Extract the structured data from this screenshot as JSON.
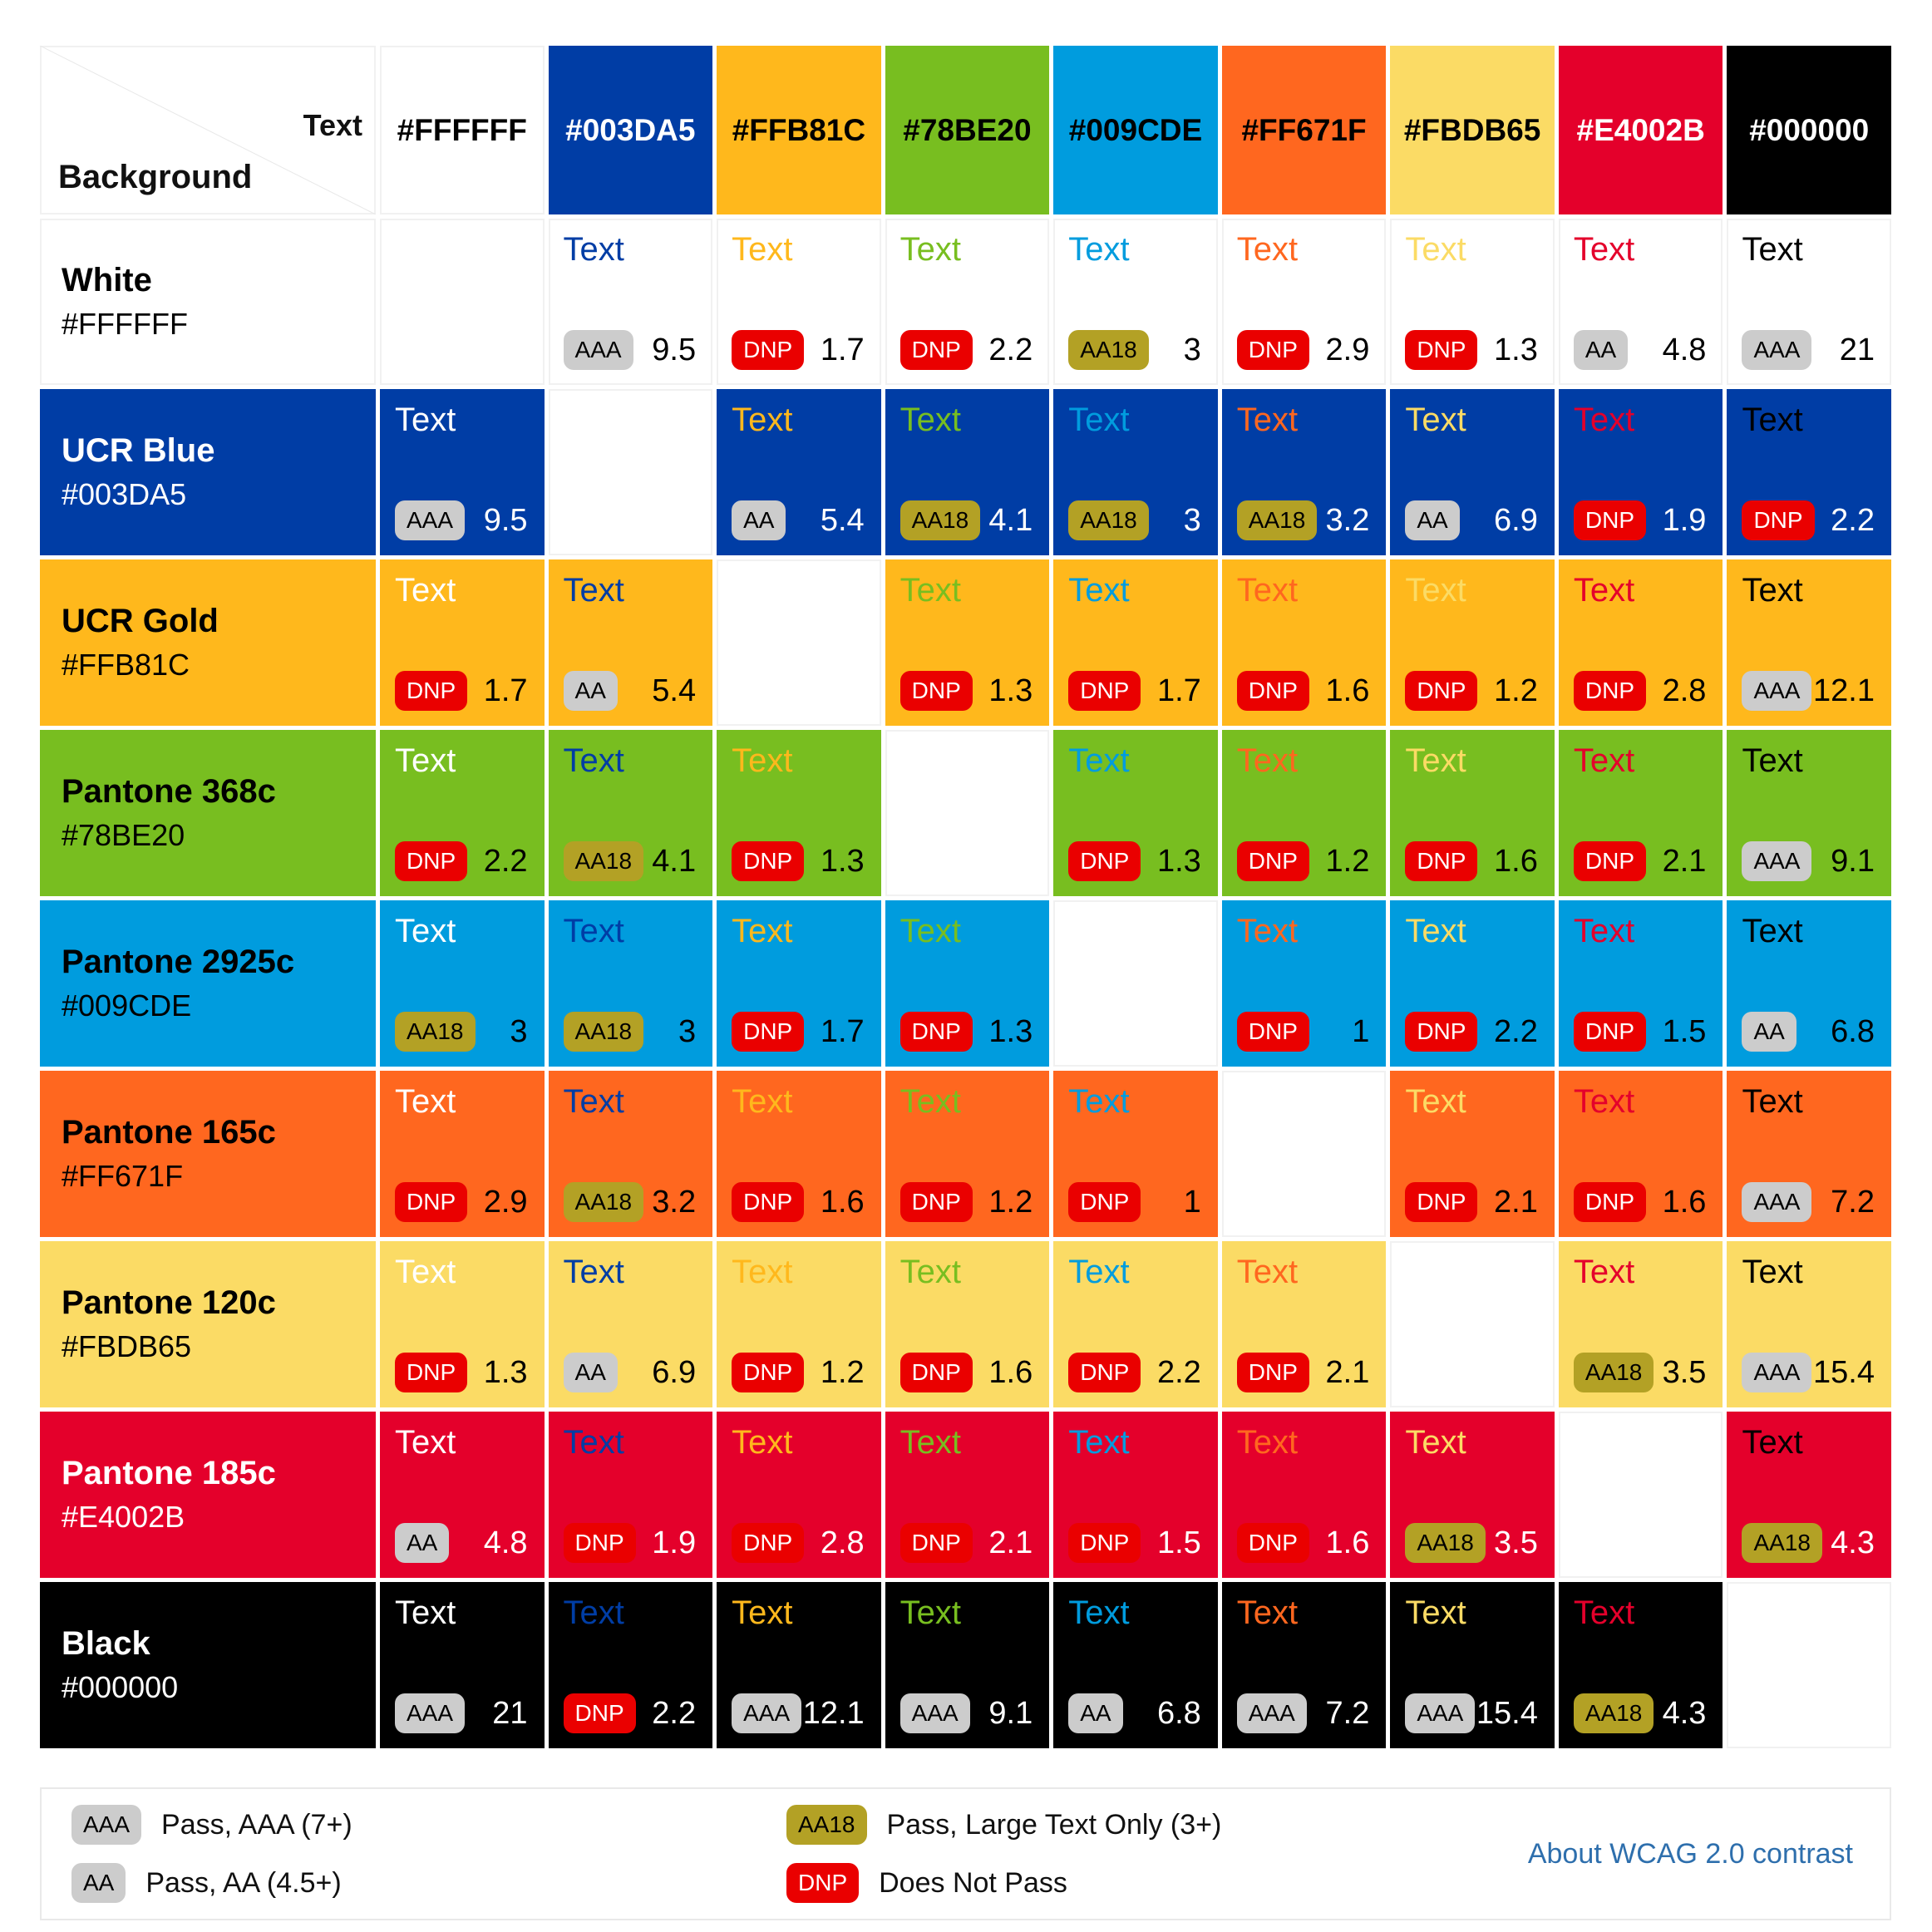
{
  "corner": {
    "text_label": "Text",
    "background_label": "Background"
  },
  "sample_text": "Text",
  "badges": {
    "AAA": {
      "bg": "#cccccc",
      "fg": "#000000"
    },
    "AA": {
      "bg": "#cccccc",
      "fg": "#000000"
    },
    "AA18": {
      "bg": "#b3a125",
      "fg": "#000000"
    },
    "DNP": {
      "bg": "#ea0000",
      "fg": "#ffffff"
    }
  },
  "chart_data": {
    "type": "heatmap",
    "description": "WCAG 2.0 contrast ratio matrix of text colors vs background colors",
    "cols_axis_label": "Text",
    "rows_axis_label": "Background",
    "colors": [
      {
        "name": "White",
        "hex": "#FFFFFF",
        "on_color": "#000000"
      },
      {
        "name": "UCR Blue",
        "hex": "#003DA5",
        "on_color": "#FFFFFF"
      },
      {
        "name": "UCR Gold",
        "hex": "#FFB81C",
        "on_color": "#000000"
      },
      {
        "name": "Pantone 368c",
        "hex": "#78BE20",
        "on_color": "#000000"
      },
      {
        "name": "Pantone 2925c",
        "hex": "#009CDE",
        "on_color": "#000000"
      },
      {
        "name": "Pantone 165c",
        "hex": "#FF671F",
        "on_color": "#000000"
      },
      {
        "name": "Pantone 120c",
        "hex": "#FBDB65",
        "on_color": "#000000"
      },
      {
        "name": "Pantone 185c",
        "hex": "#E4002B",
        "on_color": "#FFFFFF"
      },
      {
        "name": "Black",
        "hex": "#000000",
        "on_color": "#FFFFFF"
      }
    ],
    "matrix": [
      {
        "background": "White",
        "cells": [
          null,
          {
            "badge": "AAA",
            "ratio": "9.5"
          },
          {
            "badge": "DNP",
            "ratio": "1.7"
          },
          {
            "badge": "DNP",
            "ratio": "2.2"
          },
          {
            "badge": "AA18",
            "ratio": "3"
          },
          {
            "badge": "DNP",
            "ratio": "2.9"
          },
          {
            "badge": "DNP",
            "ratio": "1.3"
          },
          {
            "badge": "AA",
            "ratio": "4.8"
          },
          {
            "badge": "AAA",
            "ratio": "21"
          }
        ]
      },
      {
        "background": "UCR Blue",
        "cells": [
          {
            "badge": "AAA",
            "ratio": "9.5"
          },
          null,
          {
            "badge": "AA",
            "ratio": "5.4"
          },
          {
            "badge": "AA18",
            "ratio": "4.1"
          },
          {
            "badge": "AA18",
            "ratio": "3"
          },
          {
            "badge": "AA18",
            "ratio": "3.2"
          },
          {
            "badge": "AA",
            "ratio": "6.9"
          },
          {
            "badge": "DNP",
            "ratio": "1.9"
          },
          {
            "badge": "DNP",
            "ratio": "2.2"
          }
        ]
      },
      {
        "background": "UCR Gold",
        "cells": [
          {
            "badge": "DNP",
            "ratio": "1.7"
          },
          {
            "badge": "AA",
            "ratio": "5.4"
          },
          null,
          {
            "badge": "DNP",
            "ratio": "1.3"
          },
          {
            "badge": "DNP",
            "ratio": "1.7"
          },
          {
            "badge": "DNP",
            "ratio": "1.6"
          },
          {
            "badge": "DNP",
            "ratio": "1.2"
          },
          {
            "badge": "DNP",
            "ratio": "2.8"
          },
          {
            "badge": "AAA",
            "ratio": "12.1"
          }
        ]
      },
      {
        "background": "Pantone 368c",
        "cells": [
          {
            "badge": "DNP",
            "ratio": "2.2"
          },
          {
            "badge": "AA18",
            "ratio": "4.1"
          },
          {
            "badge": "DNP",
            "ratio": "1.3"
          },
          null,
          {
            "badge": "DNP",
            "ratio": "1.3"
          },
          {
            "badge": "DNP",
            "ratio": "1.2"
          },
          {
            "badge": "DNP",
            "ratio": "1.6"
          },
          {
            "badge": "DNP",
            "ratio": "2.1"
          },
          {
            "badge": "AAA",
            "ratio": "9.1"
          }
        ]
      },
      {
        "background": "Pantone 2925c",
        "cells": [
          {
            "badge": "AA18",
            "ratio": "3"
          },
          {
            "badge": "AA18",
            "ratio": "3"
          },
          {
            "badge": "DNP",
            "ratio": "1.7"
          },
          {
            "badge": "DNP",
            "ratio": "1.3"
          },
          null,
          {
            "badge": "DNP",
            "ratio": "1"
          },
          {
            "badge": "DNP",
            "ratio": "2.2"
          },
          {
            "badge": "DNP",
            "ratio": "1.5"
          },
          {
            "badge": "AA",
            "ratio": "6.8"
          }
        ]
      },
      {
        "background": "Pantone 165c",
        "cells": [
          {
            "badge": "DNP",
            "ratio": "2.9"
          },
          {
            "badge": "AA18",
            "ratio": "3.2"
          },
          {
            "badge": "DNP",
            "ratio": "1.6"
          },
          {
            "badge": "DNP",
            "ratio": "1.2"
          },
          {
            "badge": "DNP",
            "ratio": "1"
          },
          null,
          {
            "badge": "DNP",
            "ratio": "2.1"
          },
          {
            "badge": "DNP",
            "ratio": "1.6"
          },
          {
            "badge": "AAA",
            "ratio": "7.2"
          }
        ]
      },
      {
        "background": "Pantone 120c",
        "cells": [
          {
            "badge": "DNP",
            "ratio": "1.3"
          },
          {
            "badge": "AA",
            "ratio": "6.9"
          },
          {
            "badge": "DNP",
            "ratio": "1.2"
          },
          {
            "badge": "DNP",
            "ratio": "1.6"
          },
          {
            "badge": "DNP",
            "ratio": "2.2"
          },
          {
            "badge": "DNP",
            "ratio": "2.1"
          },
          null,
          {
            "badge": "AA18",
            "ratio": "3.5"
          },
          {
            "badge": "AAA",
            "ratio": "15.4"
          }
        ]
      },
      {
        "background": "Pantone 185c",
        "cells": [
          {
            "badge": "AA",
            "ratio": "4.8"
          },
          {
            "badge": "DNP",
            "ratio": "1.9"
          },
          {
            "badge": "DNP",
            "ratio": "2.8"
          },
          {
            "badge": "DNP",
            "ratio": "2.1"
          },
          {
            "badge": "DNP",
            "ratio": "1.5"
          },
          {
            "badge": "DNP",
            "ratio": "1.6"
          },
          {
            "badge": "AA18",
            "ratio": "3.5"
          },
          null,
          {
            "badge": "AA18",
            "ratio": "4.3"
          }
        ]
      },
      {
        "background": "Black",
        "cells": [
          {
            "badge": "AAA",
            "ratio": "21"
          },
          {
            "badge": "DNP",
            "ratio": "2.2"
          },
          {
            "badge": "AAA",
            "ratio": "12.1"
          },
          {
            "badge": "AAA",
            "ratio": "9.1"
          },
          {
            "badge": "AA",
            "ratio": "6.8"
          },
          {
            "badge": "AAA",
            "ratio": "7.2"
          },
          {
            "badge": "AAA",
            "ratio": "15.4"
          },
          {
            "badge": "AA18",
            "ratio": "4.3"
          },
          null
        ]
      }
    ]
  },
  "legend": {
    "items": [
      {
        "badge": "AAA",
        "label": "Pass, AAA (7+)"
      },
      {
        "badge": "AA",
        "label": "Pass, AA (4.5+)"
      },
      {
        "badge": "AA18",
        "label": "Pass, Large Text Only (3+)"
      },
      {
        "badge": "DNP",
        "label": "Does Not Pass"
      }
    ],
    "link_label": "About WCAG 2.0 contrast",
    "link_color": "#2e6fad"
  }
}
